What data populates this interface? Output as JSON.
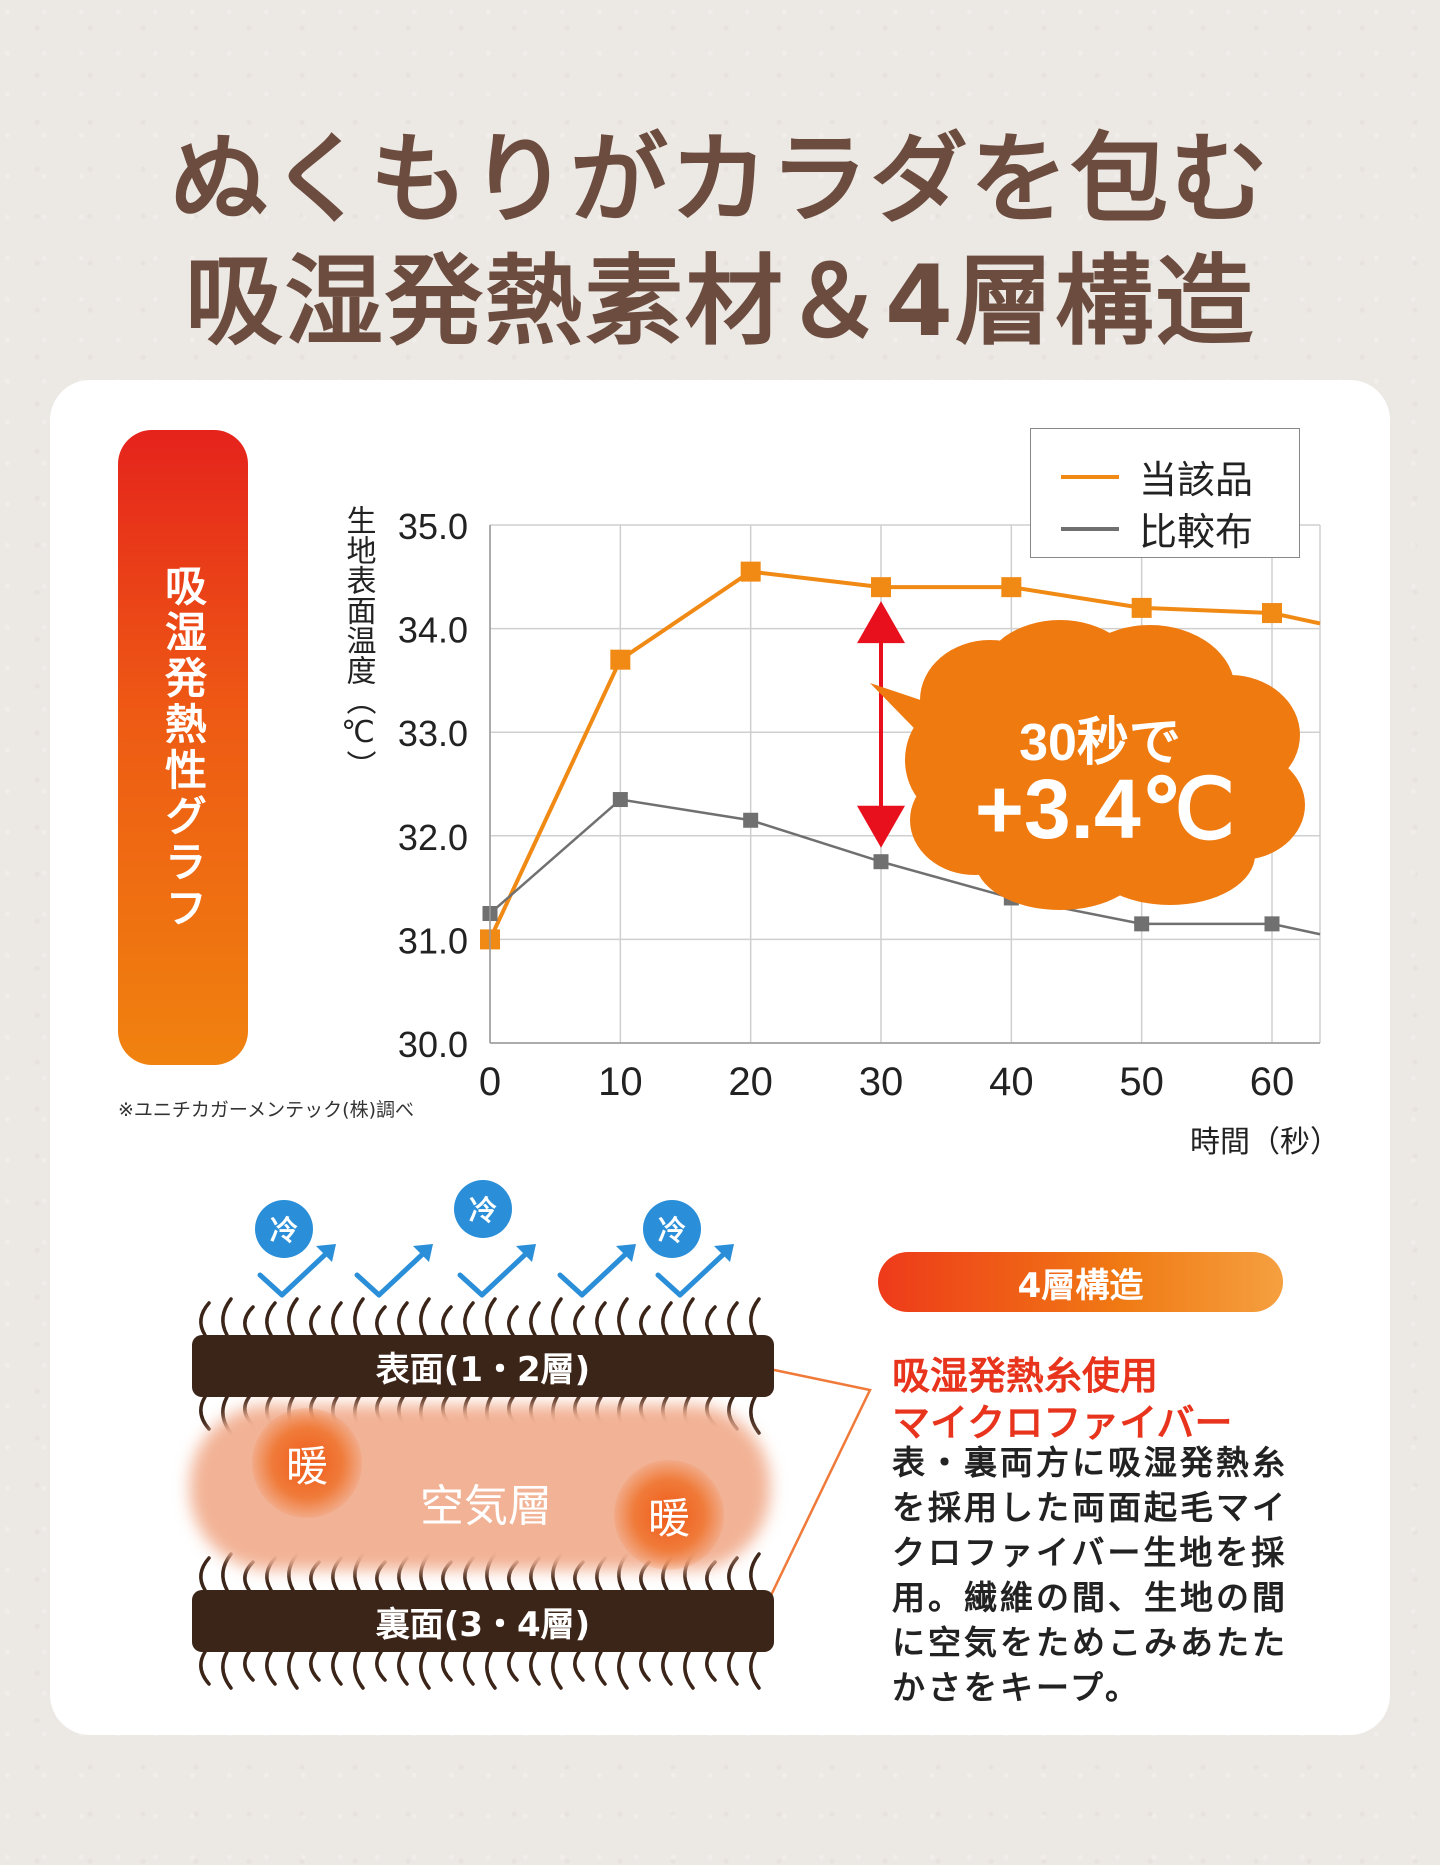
{
  "headline": {
    "line1": "ぬくもりがカラダを包む",
    "line2": "吸湿発熱素材＆4層構造"
  },
  "side_label": "吸湿発熱性グラフ",
  "source_note": "※ユニチカガーメンテック(株)調べ",
  "chart_data": {
    "type": "line",
    "x": [
      0,
      10,
      20,
      30,
      40,
      50,
      60
    ],
    "series": [
      {
        "name": "当該品",
        "color": "#f08a14",
        "values": [
          31.0,
          33.7,
          34.55,
          34.4,
          34.4,
          34.2,
          34.15
        ],
        "trailing": 34.05
      },
      {
        "name": "比較布",
        "color": "#707070",
        "values": [
          31.25,
          32.35,
          32.15,
          31.75,
          31.4,
          31.15,
          31.15
        ],
        "trailing": 31.05
      }
    ],
    "xlim": [
      0,
      60
    ],
    "ylim": [
      30.0,
      35.0
    ],
    "x_ticks": [
      "0",
      "10",
      "20",
      "30",
      "40",
      "50",
      "60"
    ],
    "y_ticks": [
      "30.0",
      "31.0",
      "32.0",
      "33.0",
      "34.0",
      "35.0"
    ],
    "xlabel": "時間（秒）",
    "ylabel": "生地表面温度（℃）",
    "grid": true,
    "legend_position": "top-right",
    "annotation": {
      "line1": "30秒で",
      "line2": "+3.4℃",
      "at_x": 30,
      "color": "#e8101c",
      "bubble_color": "#ee7a10"
    }
  },
  "structure": {
    "cold_label": "冷",
    "warm_label": "暖",
    "air_label": "空気層",
    "top_bar": "表面(1・2層)",
    "bottom_bar": "裏面(3・4層)",
    "pill": "4層構造",
    "title1": "吸湿発熱糸使用",
    "title2": "マイクロファイバー",
    "description": "表・裏両方に吸湿発熱糸を採用した両面起毛マイクロファイバー生地を採用。繊維の間、生地の間に空気をためこみあたたかさをキープ。"
  }
}
